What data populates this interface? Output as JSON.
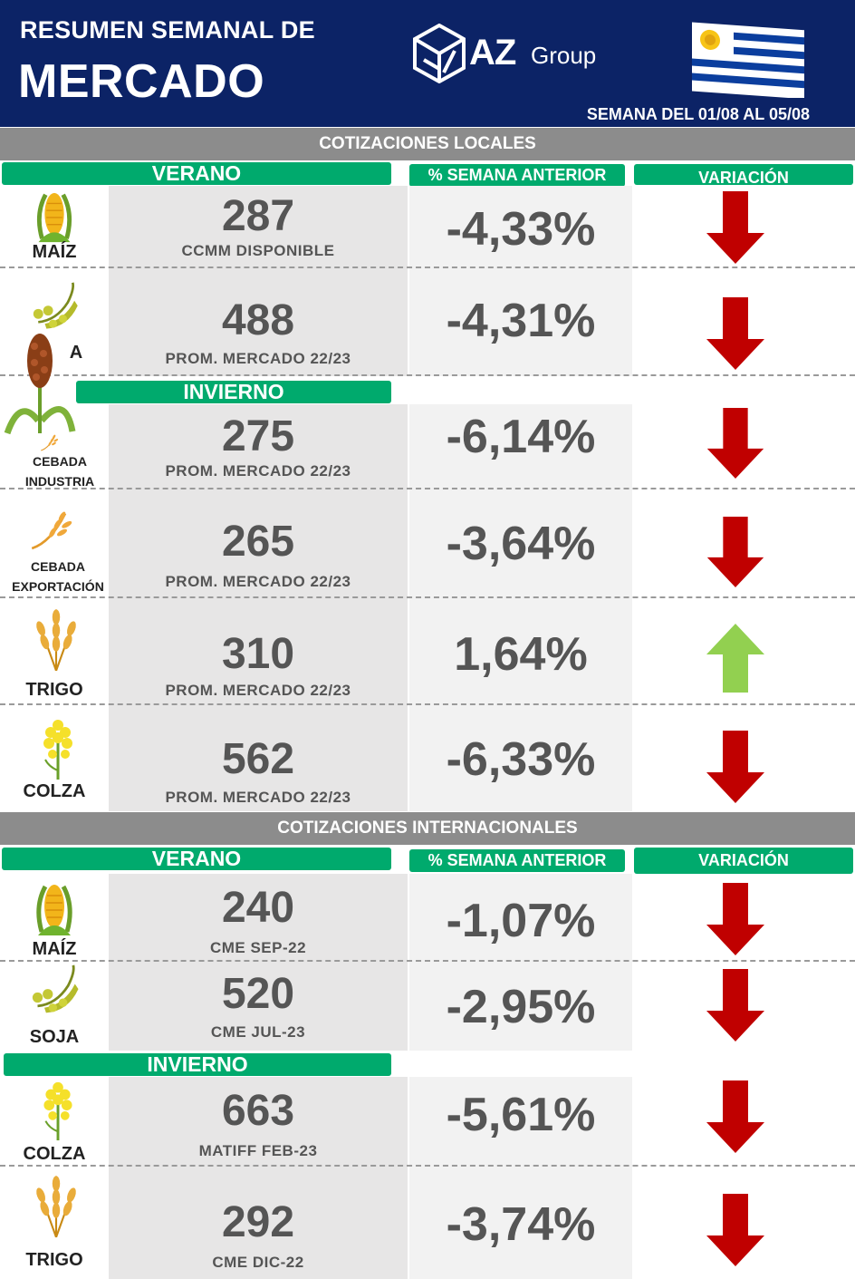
{
  "header": {
    "title_line1": "RESUMEN SEMANAL DE",
    "title_line2": "MERCADO",
    "brand_main": "AZ",
    "brand_sub": "Group",
    "week_label": "SEMANA DEL  01/08 AL 05/08"
  },
  "colors": {
    "navy": "#0c2366",
    "green": "#00aa6d",
    "grey_bar": "#8c8c8c",
    "down_arrow": "#c00000",
    "up_arrow": "#92d050"
  },
  "local": {
    "title": "COTIZACIONES LOCALES",
    "summer_label": "VERANO",
    "winter_label": "INVIERNO",
    "pct_header": "% SEMANA ANTERIOR",
    "var_header": "VARIACIÓN",
    "rows": [
      {
        "crop": "MAÍZ",
        "icon": "corn-icon",
        "price": "287",
        "ref": "CCMM DISPONIBLE",
        "pct": "-4,33%",
        "trend": "down"
      },
      {
        "crop": "",
        "icon": "soy-icon",
        "price": "488",
        "ref": "PROM. MERCADO 22/23",
        "pct": "-4,31%",
        "trend": "down",
        "partial_label": "A"
      },
      {
        "crop": "CEBADA INDUSTRIA",
        "icon": "sorghum-icon",
        "price": "275",
        "ref": "PROM. MERCADO 22/23",
        "pct": "-6,14%",
        "trend": "down"
      },
      {
        "crop": "CEBADA EXPORTACIÓN",
        "icon": "barley-icon",
        "price": "265",
        "ref": "PROM. MERCADO 22/23",
        "pct": "-3,64%",
        "trend": "down"
      },
      {
        "crop": "TRIGO",
        "icon": "wheat-icon",
        "price": "310",
        "ref": "PROM. MERCADO 22/23",
        "pct": "1,64%",
        "trend": "up"
      },
      {
        "crop": "COLZA",
        "icon": "rapeseed-icon",
        "price": "562",
        "ref": "PROM. MERCADO 22/23",
        "pct": "-6,33%",
        "trend": "down"
      }
    ]
  },
  "international": {
    "title": "COTIZACIONES INTERNACIONALES",
    "summer_label": "VERANO",
    "winter_label": "INVIERNO",
    "pct_header": "% SEMANA ANTERIOR",
    "var_header": "VARIACIÓN",
    "rows": [
      {
        "crop": "MAÍZ",
        "icon": "corn-icon",
        "price": "240",
        "ref": "CME SEP-22",
        "pct": "-1,07%",
        "trend": "down"
      },
      {
        "crop": "SOJA",
        "icon": "soy-icon",
        "price": "520",
        "ref": "CME JUL-23",
        "pct": "-2,95%",
        "trend": "down"
      },
      {
        "crop": "COLZA",
        "icon": "rapeseed-icon",
        "price": "663",
        "ref": "MATIFF FEB-23",
        "pct": "-5,61%",
        "trend": "down"
      },
      {
        "crop": "TRIGO",
        "icon": "wheat-icon",
        "price": "292",
        "ref": "CME DIC-22",
        "pct": "-3,74%",
        "trend": "down"
      }
    ]
  }
}
